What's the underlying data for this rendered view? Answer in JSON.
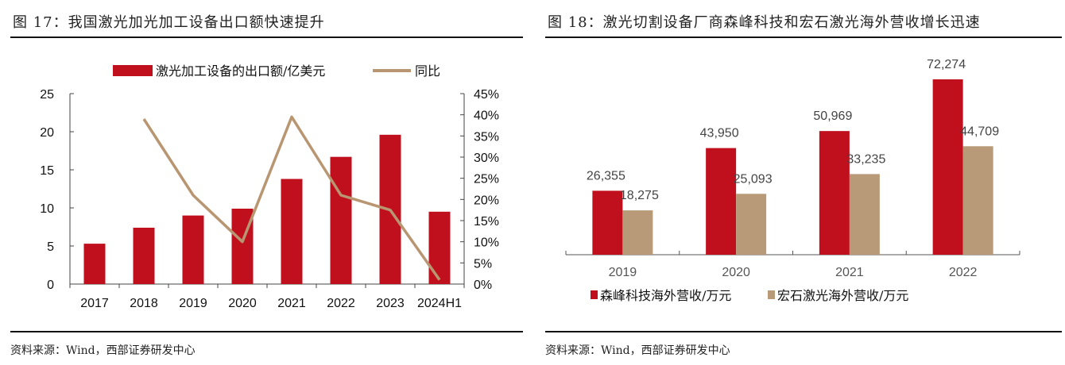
{
  "left_panel": {
    "title": "图 17：我国激光加光加工设备出口额快速提升",
    "source": "资料来源：Wind，西部证券研发中心"
  },
  "right_panel": {
    "title": "图 18：激光切割设备厂商森峰科技和宏石激光海外营收增长迅速",
    "source": "资料来源：Wind，西部证券研发中心"
  },
  "chart_data": [
    {
      "type": "bar",
      "combo": "bar+line",
      "title": "我国激光加光加工设备出口额快速提升",
      "categories": [
        "2017",
        "2018",
        "2019",
        "2020",
        "2021",
        "2022",
        "2023",
        "2024H1"
      ],
      "series": [
        {
          "name": "激光加工设备的出口额/亿美元",
          "type": "bar",
          "axis": "left",
          "color": "#c0101e",
          "values": [
            5.3,
            7.4,
            9.0,
            9.9,
            13.8,
            16.7,
            19.6,
            9.5
          ]
        },
        {
          "name": "同比",
          "type": "line",
          "axis": "right",
          "color": "#b99672",
          "values": [
            null,
            39.0,
            21.0,
            10.0,
            39.5,
            21.0,
            17.5,
            1.0
          ]
        }
      ],
      "left_axis": {
        "ylim": [
          0,
          25
        ],
        "ticks": [
          "0",
          "5",
          "10",
          "15",
          "20",
          "25"
        ]
      },
      "right_axis": {
        "ylim": [
          0,
          45
        ],
        "ticks": [
          "0%",
          "5%",
          "10%",
          "15%",
          "20%",
          "25%",
          "30%",
          "35%",
          "40%",
          "45%"
        ]
      },
      "legend_position": "top",
      "grid": false
    },
    {
      "type": "bar",
      "title": "激光切割设备厂商森峰科技和宏石激光海外营收增长迅速",
      "categories": [
        "2019",
        "2020",
        "2021",
        "2022"
      ],
      "series": [
        {
          "name": "森峰科技海外营收/万元",
          "color": "#c0101e",
          "values": [
            26355,
            43950,
            50969,
            72274
          ],
          "labels": [
            "26,355",
            "43,950",
            "50,969",
            "72,274"
          ]
        },
        {
          "name": "宏石激光海外营收/万元",
          "color": "#b99a78",
          "values": [
            18275,
            25093,
            33235,
            44709
          ],
          "labels": [
            "18,275",
            "25,093",
            "33,235",
            "44,709"
          ]
        }
      ],
      "ylim": [
        0,
        80000
      ],
      "legend_position": "bottom",
      "grid": false
    }
  ]
}
